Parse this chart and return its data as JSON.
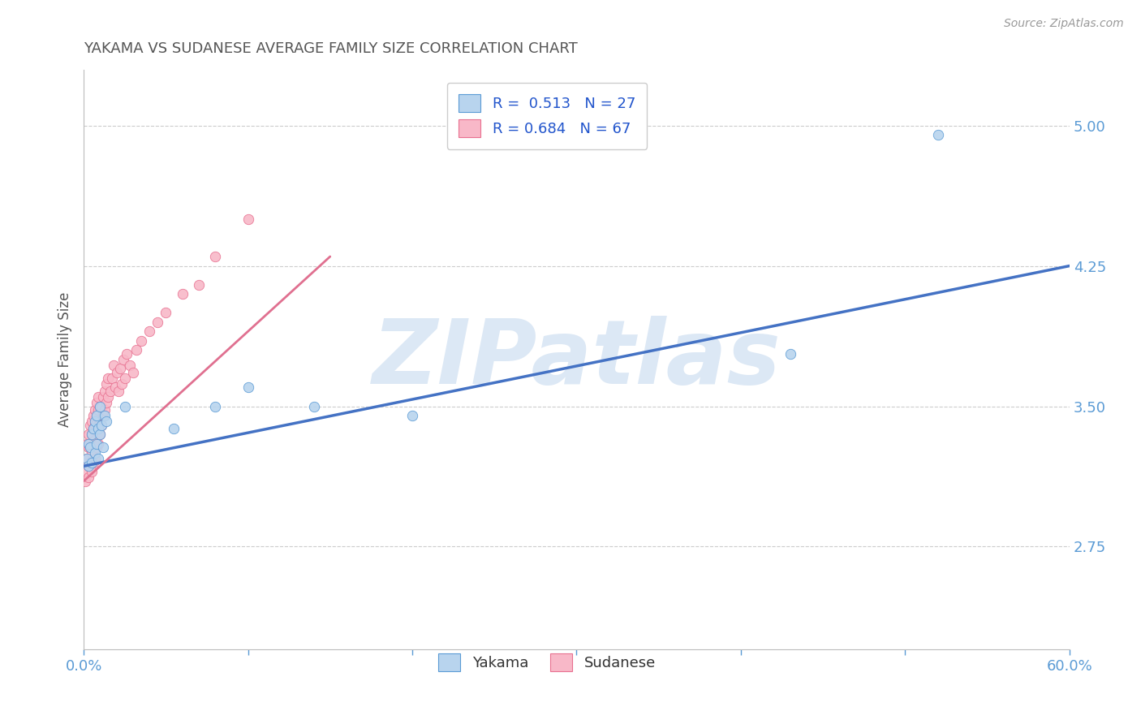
{
  "title": "YAKAMA VS SUDANESE AVERAGE FAMILY SIZE CORRELATION CHART",
  "source_text": "Source: ZipAtlas.com",
  "ylabel": "Average Family Size",
  "xlim": [
    0.0,
    0.6
  ],
  "ylim": [
    2.2,
    5.3
  ],
  "xticks": [
    0.0,
    0.1,
    0.2,
    0.3,
    0.4,
    0.5,
    0.6
  ],
  "xticklabels": [
    "0.0%",
    "",
    "",
    "",
    "",
    "",
    "60.0%"
  ],
  "yticks": [
    2.75,
    3.5,
    4.25,
    5.0
  ],
  "title_color": "#555555",
  "title_fontsize": 13,
  "axis_color": "#5b9bd5",
  "yakama_color": "#b8d4ee",
  "sudanese_color": "#f8b8c8",
  "yakama_edge_color": "#5b9bd5",
  "sudanese_edge_color": "#e87090",
  "yakama_line_color": "#4472c4",
  "sudanese_line_color": "#e07090",
  "watermark_color": "#dce8f5",
  "watermark_text": "ZIPatlas",
  "legend_R1": "R =  0.513",
  "legend_N1": "N = 27",
  "legend_R2": "R = 0.684",
  "legend_N2": "N = 67",
  "yakama_x": [
    0.002,
    0.003,
    0.003,
    0.004,
    0.005,
    0.005,
    0.006,
    0.007,
    0.007,
    0.008,
    0.008,
    0.009,
    0.009,
    0.01,
    0.01,
    0.011,
    0.012,
    0.013,
    0.014,
    0.025,
    0.055,
    0.08,
    0.1,
    0.14,
    0.2,
    0.43,
    0.52
  ],
  "yakama_y": [
    3.22,
    3.3,
    3.18,
    3.28,
    3.2,
    3.35,
    3.38,
    3.25,
    3.42,
    3.3,
    3.45,
    3.22,
    3.38,
    3.35,
    3.5,
    3.4,
    3.28,
    3.45,
    3.42,
    3.5,
    3.38,
    3.5,
    3.6,
    3.5,
    3.45,
    3.78,
    4.95
  ],
  "sudanese_x": [
    0.001,
    0.001,
    0.002,
    0.002,
    0.002,
    0.003,
    0.003,
    0.003,
    0.003,
    0.004,
    0.004,
    0.004,
    0.005,
    0.005,
    0.005,
    0.005,
    0.006,
    0.006,
    0.006,
    0.006,
    0.007,
    0.007,
    0.007,
    0.007,
    0.008,
    0.008,
    0.008,
    0.008,
    0.009,
    0.009,
    0.009,
    0.009,
    0.01,
    0.01,
    0.01,
    0.011,
    0.011,
    0.012,
    0.012,
    0.013,
    0.013,
    0.014,
    0.014,
    0.015,
    0.015,
    0.016,
    0.017,
    0.018,
    0.019,
    0.02,
    0.021,
    0.022,
    0.023,
    0.024,
    0.025,
    0.026,
    0.028,
    0.03,
    0.032,
    0.035,
    0.04,
    0.045,
    0.05,
    0.06,
    0.07,
    0.08,
    0.1
  ],
  "sudanese_y": [
    3.1,
    3.2,
    3.15,
    3.22,
    3.3,
    3.12,
    3.18,
    3.28,
    3.35,
    3.2,
    3.28,
    3.4,
    3.15,
    3.25,
    3.35,
    3.42,
    3.2,
    3.3,
    3.38,
    3.45,
    3.22,
    3.32,
    3.4,
    3.48,
    3.28,
    3.38,
    3.45,
    3.52,
    3.3,
    3.4,
    3.48,
    3.55,
    3.35,
    3.42,
    3.5,
    3.4,
    3.5,
    3.45,
    3.55,
    3.48,
    3.58,
    3.52,
    3.62,
    3.55,
    3.65,
    3.58,
    3.65,
    3.72,
    3.6,
    3.68,
    3.58,
    3.7,
    3.62,
    3.75,
    3.65,
    3.78,
    3.72,
    3.68,
    3.8,
    3.85,
    3.9,
    3.95,
    4.0,
    4.1,
    4.15,
    4.3,
    4.5
  ],
  "yakama_trendline_x": [
    0.0,
    0.6
  ],
  "yakama_trendline_y": [
    3.18,
    4.25
  ],
  "sudanese_trendline_x": [
    0.0,
    0.15
  ],
  "sudanese_trendline_y": [
    3.1,
    4.3
  ]
}
